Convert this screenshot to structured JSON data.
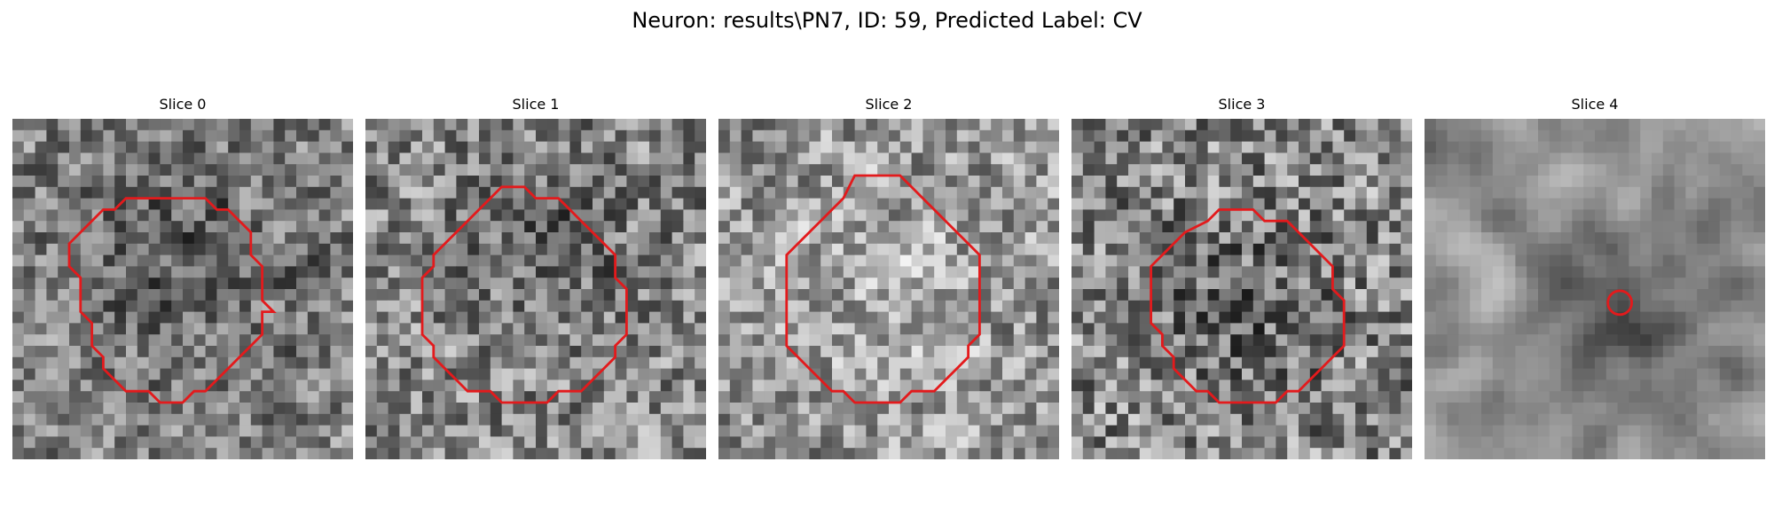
{
  "figure": {
    "title": "Neuron: results\\PN7, ID: 59, Predicted Label: CV"
  },
  "overlay_color": "#e31a1c",
  "slices": [
    {
      "title": "Slice 0",
      "seed": 11,
      "blur": 0.35,
      "bias": 0,
      "dark_center": [
        0.5,
        0.42
      ],
      "dark_radius": 0.28,
      "dark_amount": 45,
      "contour": [
        [
          14,
          7
        ],
        [
          17,
          7
        ],
        [
          18,
          8
        ],
        [
          19,
          8
        ],
        [
          20,
          9
        ],
        [
          21,
          10
        ],
        [
          21,
          12
        ],
        [
          22,
          13
        ],
        [
          22,
          16
        ],
        [
          23,
          17
        ],
        [
          22,
          17
        ],
        [
          22,
          19
        ],
        [
          21,
          20
        ],
        [
          20,
          21
        ],
        [
          19,
          22
        ],
        [
          18,
          23
        ],
        [
          17,
          24
        ],
        [
          16,
          24
        ],
        [
          15,
          25
        ],
        [
          13,
          25
        ],
        [
          12,
          24
        ],
        [
          10,
          24
        ],
        [
          9,
          23
        ],
        [
          8,
          22
        ],
        [
          8,
          21
        ],
        [
          7,
          20
        ],
        [
          7,
          18
        ],
        [
          6,
          17
        ],
        [
          6,
          14
        ],
        [
          5,
          13
        ],
        [
          5,
          11
        ],
        [
          6,
          10
        ],
        [
          7,
          9
        ],
        [
          8,
          8
        ],
        [
          9,
          8
        ],
        [
          10,
          7
        ]
      ]
    },
    {
      "title": "Slice 1",
      "seed": 23,
      "blur": 0.25,
      "bias": 0,
      "dark_center": [
        0.52,
        0.34
      ],
      "dark_radius": 0.2,
      "dark_amount": 35,
      "contour": [
        [
          12,
          6
        ],
        [
          14,
          6
        ],
        [
          15,
          7
        ],
        [
          17,
          7
        ],
        [
          18,
          8
        ],
        [
          19,
          9
        ],
        [
          20,
          10
        ],
        [
          21,
          11
        ],
        [
          22,
          12
        ],
        [
          22,
          14
        ],
        [
          23,
          15
        ],
        [
          23,
          19
        ],
        [
          22,
          20
        ],
        [
          22,
          21
        ],
        [
          21,
          22
        ],
        [
          20,
          23
        ],
        [
          19,
          24
        ],
        [
          17,
          24
        ],
        [
          16,
          25
        ],
        [
          12,
          25
        ],
        [
          11,
          24
        ],
        [
          9,
          24
        ],
        [
          8,
          23
        ],
        [
          7,
          22
        ],
        [
          6,
          21
        ],
        [
          6,
          20
        ],
        [
          5,
          19
        ],
        [
          5,
          14
        ],
        [
          6,
          13
        ],
        [
          6,
          12
        ],
        [
          7,
          11
        ],
        [
          8,
          10
        ],
        [
          9,
          9
        ],
        [
          10,
          8
        ],
        [
          11,
          7
        ]
      ]
    },
    {
      "title": "Slice 2",
      "seed": 37,
      "blur": 0.3,
      "bias": 8,
      "dark_center": [
        0.5,
        0.5
      ],
      "dark_radius": 0.25,
      "dark_amount": -25,
      "contour": [
        [
          12,
          5
        ],
        [
          16,
          5
        ],
        [
          17,
          6
        ],
        [
          18,
          7
        ],
        [
          19,
          8
        ],
        [
          20,
          9
        ],
        [
          21,
          10
        ],
        [
          22,
          11
        ],
        [
          23,
          12
        ],
        [
          23,
          19
        ],
        [
          22,
          20
        ],
        [
          22,
          21
        ],
        [
          21,
          22
        ],
        [
          20,
          23
        ],
        [
          19,
          24
        ],
        [
          17,
          24
        ],
        [
          16,
          25
        ],
        [
          12,
          25
        ],
        [
          11,
          24
        ],
        [
          10,
          24
        ],
        [
          9,
          23
        ],
        [
          8,
          22
        ],
        [
          7,
          21
        ],
        [
          6,
          20
        ],
        [
          6,
          12
        ],
        [
          7,
          11
        ],
        [
          8,
          10
        ],
        [
          9,
          9
        ],
        [
          10,
          8
        ],
        [
          11,
          7
        ]
      ]
    },
    {
      "title": "Slice 3",
      "seed": 53,
      "blur": 0.12,
      "bias": 0,
      "dark_center": [
        0.5,
        0.55
      ],
      "dark_radius": 0.22,
      "dark_amount": 35,
      "contour": [
        [
          13,
          8
        ],
        [
          16,
          8
        ],
        [
          17,
          9
        ],
        [
          19,
          9
        ],
        [
          20,
          10
        ],
        [
          21,
          11
        ],
        [
          22,
          12
        ],
        [
          23,
          13
        ],
        [
          23,
          15
        ],
        [
          24,
          16
        ],
        [
          24,
          20
        ],
        [
          23,
          21
        ],
        [
          22,
          22
        ],
        [
          21,
          23
        ],
        [
          20,
          24
        ],
        [
          19,
          24
        ],
        [
          18,
          25
        ],
        [
          13,
          25
        ],
        [
          12,
          24
        ],
        [
          11,
          24
        ],
        [
          10,
          23
        ],
        [
          9,
          22
        ],
        [
          9,
          21
        ],
        [
          8,
          20
        ],
        [
          8,
          19
        ],
        [
          7,
          18
        ],
        [
          7,
          13
        ],
        [
          8,
          12
        ],
        [
          9,
          11
        ],
        [
          10,
          10
        ],
        [
          12,
          9
        ]
      ]
    },
    {
      "title": "Slice 4",
      "seed": 71,
      "blur": 0.75,
      "bias": 8,
      "dark_center": [
        0.58,
        0.58
      ],
      "dark_radius": 0.16,
      "dark_amount": 70,
      "circle": {
        "cx": 17.2,
        "cy": 16.2,
        "r": 1.05
      }
    }
  ]
}
